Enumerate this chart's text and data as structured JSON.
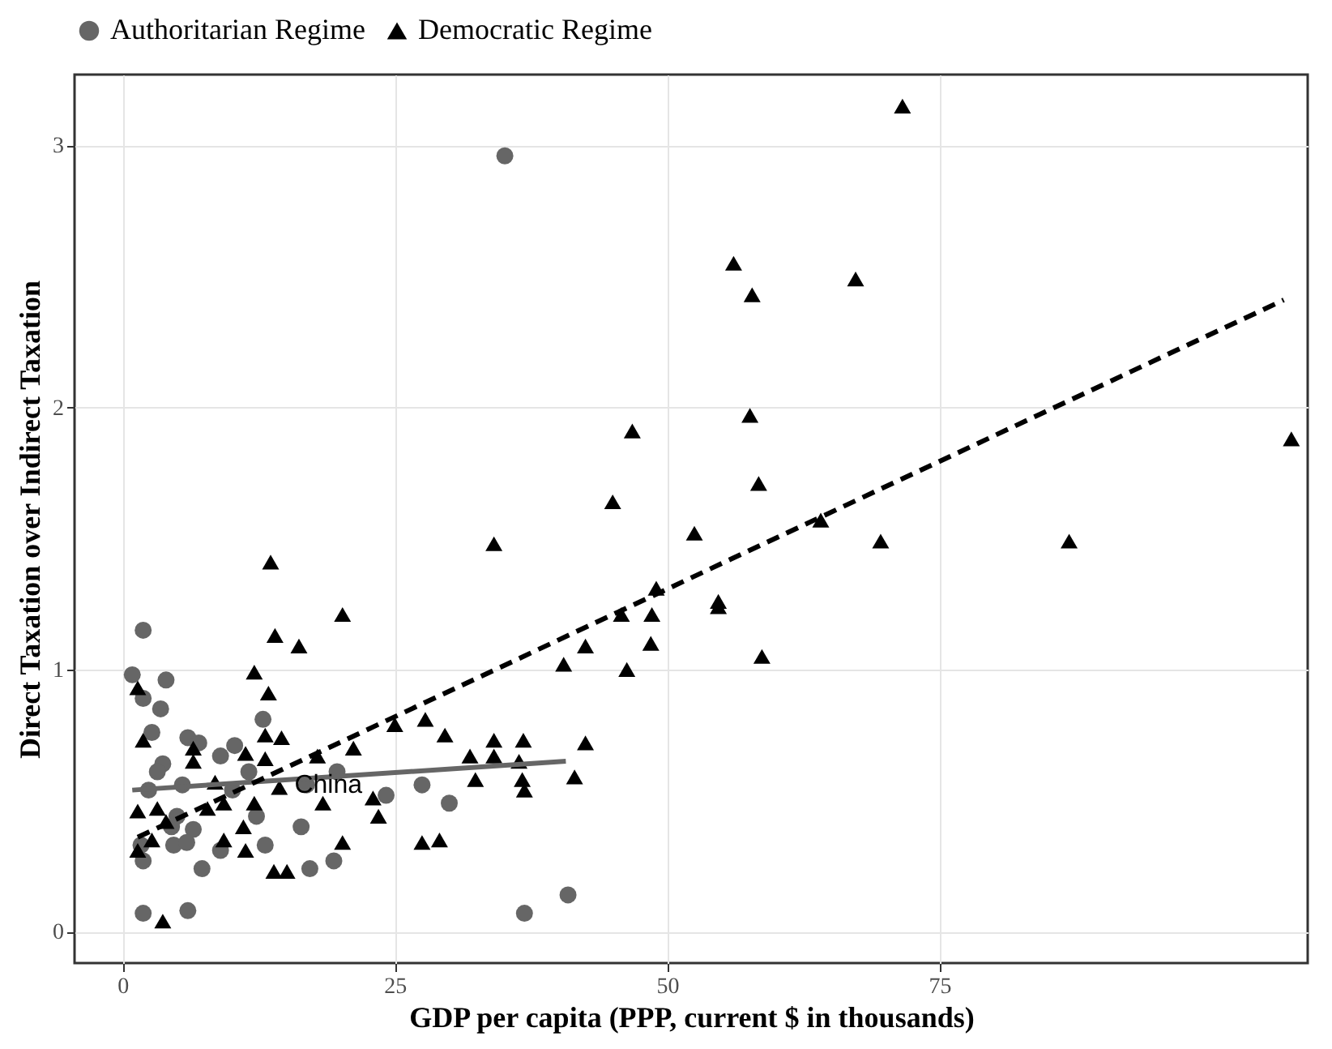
{
  "chart_data": {
    "type": "scatter",
    "xlabel": "GDP per capita (PPP, current $ in thousands)",
    "ylabel": "Direct Taxation over Indirect Taxation",
    "xlim": [
      -4.4,
      108.8
    ],
    "ylim": [
      -0.12,
      3.27
    ],
    "xticks": [
      0,
      25,
      50,
      75
    ],
    "yticks": [
      0,
      1,
      2,
      3
    ],
    "grid": true,
    "legend": "top",
    "annotations": [
      {
        "text": "China",
        "x": 18.9,
        "y": 0.56
      }
    ],
    "series": [
      {
        "name": "Authoritarian Regime",
        "color": "#666666",
        "marker": "circle",
        "x": [
          1.9,
          0.9,
          4.0,
          1.9,
          3.5,
          2.7,
          6.0,
          7.0,
          9.0,
          10.3,
          12.9,
          3.7,
          3.2,
          5.5,
          2.4,
          8.0,
          11.6,
          10.1,
          5.0,
          4.5,
          6.5,
          12.3,
          16.4,
          1.7,
          4.7,
          5.9,
          9.0,
          13.1,
          1.9,
          7.3,
          17.2,
          1.9,
          6.0,
          16.9,
          19.7,
          24.2,
          27.5,
          30.0,
          19.4,
          36.9,
          40.9,
          35.1
        ],
        "values": [
          1.15,
          0.98,
          0.96,
          0.89,
          0.85,
          0.76,
          0.74,
          0.72,
          0.67,
          0.71,
          0.81,
          0.64,
          0.61,
          0.56,
          0.54,
          null,
          0.61,
          0.54,
          0.44,
          0.4,
          0.39,
          0.44,
          0.4,
          0.33,
          0.33,
          0.34,
          0.31,
          0.33,
          0.27,
          0.24,
          0.24,
          0.07,
          0.08,
          0.56,
          0.61,
          0.52,
          0.56,
          0.49,
          0.27,
          0.07,
          0.14,
          2.96
        ]
      },
      {
        "name": "Democratic Regime",
        "color": "#000000",
        "marker": "triangle",
        "x": [
          13.6,
          14.0,
          16.2,
          12.1,
          13.4,
          1.4,
          1.9,
          13.1,
          14.6,
          11.3,
          13.1,
          6.5,
          6.5,
          17.9,
          14.4,
          8.5,
          7.8,
          9.3,
          12.1,
          1.4,
          3.2,
          4.0,
          11.1,
          9.3,
          2.7,
          1.4,
          11.3,
          13.9,
          15.1,
          3.7,
          34.1,
          20.2,
          25.0,
          27.8,
          29.6,
          21.2,
          31.9,
          34.1,
          34.1,
          36.8,
          36.4,
          42.5,
          32.4,
          36.7,
          36.9,
          41.5,
          18.4,
          23.0,
          23.5,
          20.2,
          27.5,
          29.1,
          40.5,
          42.5,
          46.3,
          71.6,
          56.1,
          57.8,
          67.3,
          57.6,
          46.8,
          58.4,
          45.0,
          52.5,
          107.3,
          64.1,
          69.6,
          86.9,
          49.0,
          54.7,
          54.7,
          45.8,
          48.6,
          48.5,
          58.7
        ],
        "values": [
          1.41,
          1.13,
          1.09,
          0.99,
          0.91,
          0.93,
          0.73,
          0.75,
          0.74,
          0.68,
          0.66,
          0.7,
          0.65,
          0.67,
          0.55,
          0.57,
          0.47,
          0.49,
          0.49,
          0.46,
          0.47,
          0.42,
          0.4,
          0.35,
          0.35,
          0.31,
          0.31,
          0.23,
          0.23,
          0.04,
          1.48,
          1.21,
          0.79,
          0.81,
          0.75,
          0.7,
          0.67,
          0.73,
          0.67,
          0.73,
          0.65,
          0.72,
          0.58,
          0.58,
          0.54,
          0.59,
          0.49,
          0.51,
          0.44,
          0.34,
          0.34,
          0.35,
          1.02,
          1.09,
          1.0,
          3.15,
          2.55,
          2.43,
          2.49,
          1.97,
          1.91,
          1.71,
          1.64,
          1.52,
          1.88,
          1.57,
          1.49,
          1.49,
          1.31,
          1.26,
          1.24,
          1.21,
          1.21,
          1.1,
          1.05
        ]
      },
      {
        "type": "line",
        "color": "#666666",
        "line_style": "solid",
        "x": [
          0.9,
          40.7
        ],
        "values": [
          0.54,
          0.65
        ]
      },
      {
        "type": "line",
        "color": "#000000",
        "line_style": "dashed",
        "x": [
          1.4,
          106.6
        ],
        "values": [
          0.36,
          2.41
        ]
      }
    ]
  }
}
